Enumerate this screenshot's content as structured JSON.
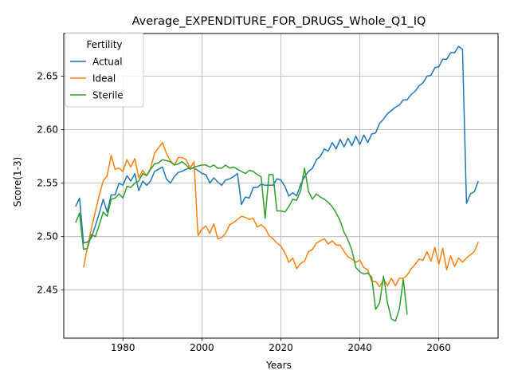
{
  "chart_data": {
    "type": "line",
    "title": "Average_EXPENDITURE_FOR_DRUGS_Whole_Q1_IQ",
    "xlabel": "Years",
    "ylabel": "Score(1-3)",
    "xlim": [
      1965,
      2075
    ],
    "ylim": [
      2.405,
      2.69
    ],
    "x_ticks": [
      1980,
      2000,
      2020,
      2040,
      2060
    ],
    "y_ticks": [
      2.45,
      2.5,
      2.55,
      2.6,
      2.65
    ],
    "x_tick_labels": [
      "1980",
      "2000",
      "2020",
      "2040",
      "2060"
    ],
    "y_tick_labels": [
      "2.45",
      "2.50",
      "2.55",
      "2.60",
      "2.65"
    ],
    "grid": true,
    "legend": {
      "title": "Fertility",
      "position": "upper-left"
    },
    "series": [
      {
        "name": "Actual",
        "color": "#1f77b4",
        "points": [
          [
            1968,
            2.528
          ],
          [
            1969,
            2.536
          ],
          [
            1970,
            2.494
          ],
          [
            1971,
            2.495
          ],
          [
            1972,
            2.499
          ],
          [
            1973,
            2.51
          ],
          [
            1974,
            2.522
          ],
          [
            1975,
            2.535
          ],
          [
            1976,
            2.523
          ],
          [
            1977,
            2.539
          ],
          [
            1978,
            2.539
          ],
          [
            1979,
            2.55
          ],
          [
            1980,
            2.548
          ],
          [
            1981,
            2.557
          ],
          [
            1982,
            2.552
          ],
          [
            1983,
            2.559
          ],
          [
            1984,
            2.543
          ],
          [
            1985,
            2.552
          ],
          [
            1986,
            2.548
          ],
          [
            1987,
            2.552
          ],
          [
            1988,
            2.561
          ],
          [
            1989,
            2.563
          ],
          [
            1990,
            2.565
          ],
          [
            1991,
            2.554
          ],
          [
            1992,
            2.55
          ],
          [
            1993,
            2.556
          ],
          [
            1994,
            2.56
          ],
          [
            1995,
            2.561
          ],
          [
            1996,
            2.563
          ],
          [
            1997,
            2.564
          ],
          [
            1998,
            2.564
          ],
          [
            1999,
            2.562
          ],
          [
            2000,
            2.559
          ],
          [
            2001,
            2.558
          ],
          [
            2002,
            2.55
          ],
          [
            2003,
            2.555
          ],
          [
            2004,
            2.551
          ],
          [
            2005,
            2.548
          ],
          [
            2006,
            2.553
          ],
          [
            2007,
            2.554
          ],
          [
            2008,
            2.556
          ],
          [
            2009,
            2.559
          ],
          [
            2010,
            2.53
          ],
          [
            2011,
            2.537
          ],
          [
            2012,
            2.536
          ],
          [
            2013,
            2.546
          ],
          [
            2014,
            2.546
          ],
          [
            2015,
            2.549
          ],
          [
            2016,
            2.548
          ],
          [
            2017,
            2.548
          ],
          [
            2018,
            2.548
          ],
          [
            2019,
            2.554
          ],
          [
            2020,
            2.553
          ],
          [
            2021,
            2.547
          ],
          [
            2022,
            2.538
          ],
          [
            2023,
            2.541
          ],
          [
            2024,
            2.538
          ],
          [
            2025,
            2.549
          ],
          [
            2026,
            2.556
          ],
          [
            2027,
            2.561
          ],
          [
            2028,
            2.564
          ],
          [
            2029,
            2.572
          ],
          [
            2030,
            2.575
          ],
          [
            2031,
            2.582
          ],
          [
            2032,
            2.58
          ],
          [
            2033,
            2.588
          ],
          [
            2034,
            2.582
          ],
          [
            2035,
            2.591
          ],
          [
            2036,
            2.584
          ],
          [
            2037,
            2.592
          ],
          [
            2038,
            2.585
          ],
          [
            2039,
            2.594
          ],
          [
            2040,
            2.586
          ],
          [
            2041,
            2.595
          ],
          [
            2042,
            2.588
          ],
          [
            2043,
            2.596
          ],
          [
            2044,
            2.597
          ],
          [
            2045,
            2.606
          ],
          [
            2046,
            2.61
          ],
          [
            2047,
            2.615
          ],
          [
            2048,
            2.618
          ],
          [
            2049,
            2.621
          ],
          [
            2050,
            2.623
          ],
          [
            2051,
            2.628
          ],
          [
            2052,
            2.628
          ],
          [
            2053,
            2.633
          ],
          [
            2054,
            2.636
          ],
          [
            2055,
            2.641
          ],
          [
            2056,
            2.644
          ],
          [
            2057,
            2.65
          ],
          [
            2058,
            2.651
          ],
          [
            2059,
            2.658
          ],
          [
            2060,
            2.659
          ],
          [
            2061,
            2.666
          ],
          [
            2062,
            2.666
          ],
          [
            2063,
            2.672
          ],
          [
            2064,
            2.672
          ],
          [
            2065,
            2.678
          ],
          [
            2066,
            2.675
          ],
          [
            2067,
            2.531
          ],
          [
            2068,
            2.54
          ],
          [
            2069,
            2.542
          ],
          [
            2070,
            2.552
          ]
        ]
      },
      {
        "name": "Ideal",
        "color": "#ff7f0e",
        "points": [
          [
            1970,
            2.471
          ],
          [
            1971,
            2.49
          ],
          [
            1972,
            2.508
          ],
          [
            1973,
            2.523
          ],
          [
            1974,
            2.539
          ],
          [
            1975,
            2.552
          ],
          [
            1976,
            2.557
          ],
          [
            1977,
            2.576
          ],
          [
            1978,
            2.563
          ],
          [
            1979,
            2.564
          ],
          [
            1980,
            2.561
          ],
          [
            1981,
            2.572
          ],
          [
            1982,
            2.565
          ],
          [
            1983,
            2.573
          ],
          [
            1984,
            2.555
          ],
          [
            1985,
            2.562
          ],
          [
            1986,
            2.557
          ],
          [
            1987,
            2.564
          ],
          [
            1988,
            2.578
          ],
          [
            1989,
            2.583
          ],
          [
            1990,
            2.588
          ],
          [
            1991,
            2.578
          ],
          [
            1992,
            2.571
          ],
          [
            1993,
            2.567
          ],
          [
            1994,
            2.574
          ],
          [
            1995,
            2.574
          ],
          [
            1996,
            2.572
          ],
          [
            1997,
            2.564
          ],
          [
            1998,
            2.57
          ],
          [
            1999,
            2.501
          ],
          [
            2000,
            2.507
          ],
          [
            2001,
            2.51
          ],
          [
            2002,
            2.503
          ],
          [
            2003,
            2.512
          ],
          [
            2004,
            2.498
          ],
          [
            2005,
            2.499
          ],
          [
            2006,
            2.503
          ],
          [
            2007,
            2.511
          ],
          [
            2008,
            2.513
          ],
          [
            2009,
            2.516
          ],
          [
            2010,
            2.519
          ],
          [
            2011,
            2.518
          ],
          [
            2012,
            2.516
          ],
          [
            2013,
            2.517
          ],
          [
            2014,
            2.509
          ],
          [
            2015,
            2.511
          ],
          [
            2016,
            2.508
          ],
          [
            2017,
            2.501
          ],
          [
            2018,
            2.498
          ],
          [
            2019,
            2.494
          ],
          [
            2020,
            2.491
          ],
          [
            2021,
            2.485
          ],
          [
            2022,
            2.476
          ],
          [
            2023,
            2.48
          ],
          [
            2024,
            2.47
          ],
          [
            2025,
            2.475
          ],
          [
            2026,
            2.477
          ],
          [
            2027,
            2.486
          ],
          [
            2028,
            2.488
          ],
          [
            2029,
            2.494
          ],
          [
            2030,
            2.496
          ],
          [
            2031,
            2.498
          ],
          [
            2032,
            2.493
          ],
          [
            2033,
            2.496
          ],
          [
            2034,
            2.492
          ],
          [
            2035,
            2.492
          ],
          [
            2036,
            2.486
          ],
          [
            2037,
            2.481
          ],
          [
            2038,
            2.479
          ],
          [
            2039,
            2.476
          ],
          [
            2040,
            2.478
          ],
          [
            2041,
            2.471
          ],
          [
            2042,
            2.469
          ],
          [
            2043,
            2.458
          ],
          [
            2044,
            2.458
          ],
          [
            2045,
            2.453
          ],
          [
            2046,
            2.46
          ],
          [
            2047,
            2.454
          ],
          [
            2048,
            2.461
          ],
          [
            2049,
            2.454
          ],
          [
            2050,
            2.461
          ],
          [
            2051,
            2.461
          ],
          [
            2052,
            2.464
          ],
          [
            2053,
            2.47
          ],
          [
            2054,
            2.474
          ],
          [
            2055,
            2.479
          ],
          [
            2056,
            2.478
          ],
          [
            2057,
            2.486
          ],
          [
            2058,
            2.477
          ],
          [
            2059,
            2.49
          ],
          [
            2060,
            2.474
          ],
          [
            2061,
            2.489
          ],
          [
            2062,
            2.469
          ],
          [
            2063,
            2.482
          ],
          [
            2064,
            2.472
          ],
          [
            2065,
            2.48
          ],
          [
            2066,
            2.476
          ],
          [
            2067,
            2.48
          ],
          [
            2068,
            2.483
          ],
          [
            2069,
            2.486
          ],
          [
            2070,
            2.495
          ]
        ]
      },
      {
        "name": "Sterile",
        "color": "#2ca02c",
        "points": [
          [
            1968,
            2.513
          ],
          [
            1969,
            2.522
          ],
          [
            1970,
            2.488
          ],
          [
            1971,
            2.489
          ],
          [
            1972,
            2.502
          ],
          [
            1973,
            2.5
          ],
          [
            1974,
            2.511
          ],
          [
            1975,
            2.523
          ],
          [
            1976,
            2.519
          ],
          [
            1977,
            2.535
          ],
          [
            1978,
            2.536
          ],
          [
            1979,
            2.54
          ],
          [
            1980,
            2.536
          ],
          [
            1981,
            2.547
          ],
          [
            1982,
            2.546
          ],
          [
            1983,
            2.55
          ],
          [
            1984,
            2.552
          ],
          [
            1985,
            2.559
          ],
          [
            1986,
            2.557
          ],
          [
            1987,
            2.563
          ],
          [
            1988,
            2.568
          ],
          [
            1989,
            2.569
          ],
          [
            1990,
            2.572
          ],
          [
            1991,
            2.571
          ],
          [
            1992,
            2.57
          ],
          [
            1993,
            2.567
          ],
          [
            1994,
            2.568
          ],
          [
            1995,
            2.57
          ],
          [
            1996,
            2.567
          ],
          [
            1997,
            2.563
          ],
          [
            1998,
            2.565
          ],
          [
            1999,
            2.566
          ],
          [
            2000,
            2.567
          ],
          [
            2001,
            2.567
          ],
          [
            2002,
            2.565
          ],
          [
            2003,
            2.567
          ],
          [
            2004,
            2.564
          ],
          [
            2005,
            2.564
          ],
          [
            2006,
            2.567
          ],
          [
            2007,
            2.564
          ],
          [
            2008,
            2.565
          ],
          [
            2009,
            2.563
          ],
          [
            2010,
            2.561
          ],
          [
            2011,
            2.559
          ],
          [
            2012,
            2.562
          ],
          [
            2013,
            2.561
          ],
          [
            2014,
            2.558
          ],
          [
            2015,
            2.556
          ],
          [
            2016,
            2.517
          ],
          [
            2017,
            2.558
          ],
          [
            2018,
            2.558
          ],
          [
            2019,
            2.524
          ],
          [
            2020,
            2.524
          ],
          [
            2021,
            2.523
          ],
          [
            2022,
            2.528
          ],
          [
            2023,
            2.535
          ],
          [
            2024,
            2.534
          ],
          [
            2025,
            2.543
          ],
          [
            2026,
            2.564
          ],
          [
            2027,
            2.542
          ],
          [
            2028,
            2.535
          ],
          [
            2029,
            2.54
          ],
          [
            2030,
            2.537
          ],
          [
            2031,
            2.535
          ],
          [
            2032,
            2.532
          ],
          [
            2033,
            2.528
          ],
          [
            2034,
            2.522
          ],
          [
            2035,
            2.515
          ],
          [
            2036,
            2.504
          ],
          [
            2037,
            2.497
          ],
          [
            2038,
            2.487
          ],
          [
            2039,
            2.471
          ],
          [
            2040,
            2.467
          ],
          [
            2041,
            2.465
          ],
          [
            2042,
            2.466
          ],
          [
            2043,
            2.462
          ],
          [
            2044,
            2.432
          ],
          [
            2045,
            2.438
          ],
          [
            2046,
            2.463
          ],
          [
            2047,
            2.438
          ],
          [
            2048,
            2.423
          ],
          [
            2049,
            2.421
          ],
          [
            2050,
            2.432
          ],
          [
            2051,
            2.46
          ],
          [
            2052,
            2.427
          ]
        ]
      }
    ]
  }
}
